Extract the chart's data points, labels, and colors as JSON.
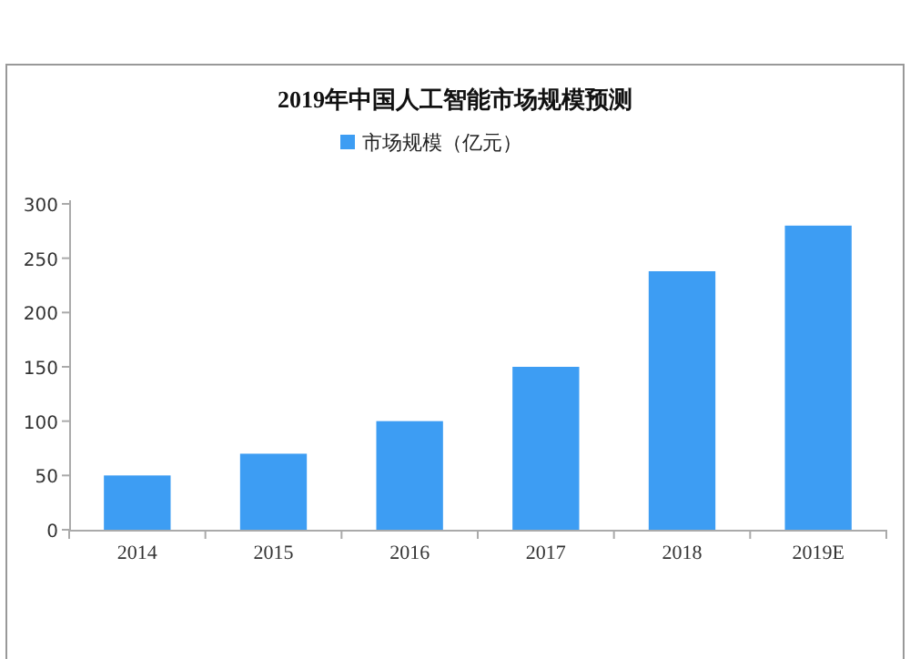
{
  "chart_data": {
    "type": "bar",
    "title": "2019年中国人工智能市场规模预测",
    "categories": [
      "2014",
      "2015",
      "2016",
      "2017",
      "2018",
      "2019E"
    ],
    "series": [
      {
        "name": "市场规模（亿元）",
        "color": "#3d9df3",
        "values": [
          50,
          70,
          100,
          150,
          238,
          280
        ]
      }
    ],
    "ylim": [
      0,
      300
    ],
    "yticks": [
      0,
      50,
      100,
      150,
      200,
      250,
      300
    ],
    "grid": false,
    "legend": "top"
  }
}
